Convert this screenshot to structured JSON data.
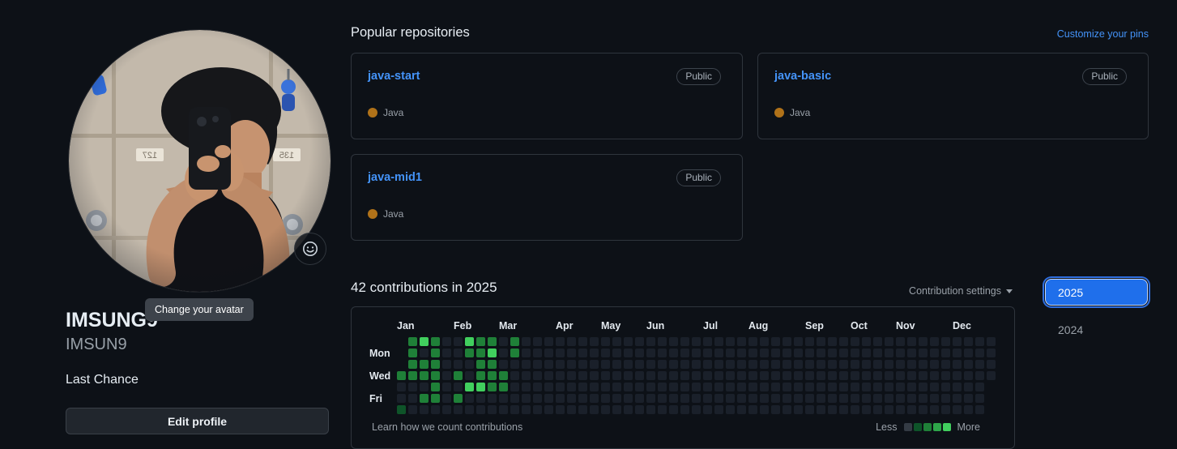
{
  "colors": {
    "link_blue": "#4493f8",
    "selected_year_bg": "#1f6feb",
    "java_dot": "#b07219"
  },
  "profile": {
    "name": "IMSUNG9",
    "username": "IMSUN9",
    "bio": "Last Chance",
    "edit_button_label": "Edit profile",
    "avatar_tooltip": "Change your avatar",
    "status_button_icon": "smiley-icon"
  },
  "pinned": {
    "heading": "Popular repositories",
    "customize_link": "Customize your pins",
    "repos": [
      {
        "name": "java-start",
        "visibility": "Public",
        "language": "Java"
      },
      {
        "name": "java-basic",
        "visibility": "Public",
        "language": "Java"
      },
      {
        "name": "java-mid1",
        "visibility": "Public",
        "language": "Java"
      }
    ]
  },
  "contributions": {
    "heading": "42 contributions in 2025",
    "settings_label": "Contribution settings",
    "years": [
      {
        "label": "2025",
        "selected": true
      },
      {
        "label": "2024",
        "selected": false
      }
    ],
    "footer_link": "Learn how we count contributions",
    "legend": {
      "less_label": "Less",
      "more_label": "More",
      "colors": [
        "#343b44",
        "#0e5429",
        "#1f8038",
        "#2ea64a",
        "#41cf5e"
      ]
    },
    "chart_data": {
      "type": "heatmap",
      "title": "42 contributions in 2025",
      "total_contributions": 42,
      "year": "2025",
      "weeks": 53,
      "first_week_start_day": 3,
      "last_week_end_day": 3,
      "day_labels": [
        {
          "label": "Mon",
          "row": 1
        },
        {
          "label": "Wed",
          "row": 3
        },
        {
          "label": "Fri",
          "row": 5
        }
      ],
      "months": [
        {
          "label": "Jan",
          "week": 0
        },
        {
          "label": "Feb",
          "week": 5
        },
        {
          "label": "Mar",
          "week": 9
        },
        {
          "label": "Apr",
          "week": 14
        },
        {
          "label": "May",
          "week": 18
        },
        {
          "label": "Jun",
          "week": 22
        },
        {
          "label": "Jul",
          "week": 27
        },
        {
          "label": "Aug",
          "week": 31
        },
        {
          "label": "Sep",
          "week": 36
        },
        {
          "label": "Oct",
          "week": 40
        },
        {
          "label": "Nov",
          "week": 44
        },
        {
          "label": "Dec",
          "week": 49
        }
      ],
      "level_colors": [
        "#1a202a",
        "#0e5429",
        "#1f8038",
        "#2ea64a",
        "#41cf5e"
      ],
      "cells": [
        {
          "w": 1,
          "d": 0,
          "l": 2
        },
        {
          "w": 2,
          "d": 0,
          "l": 4
        },
        {
          "w": 3,
          "d": 0,
          "l": 2
        },
        {
          "w": 6,
          "d": 0,
          "l": 4
        },
        {
          "w": 7,
          "d": 0,
          "l": 2
        },
        {
          "w": 8,
          "d": 0,
          "l": 2
        },
        {
          "w": 10,
          "d": 0,
          "l": 2
        },
        {
          "w": 1,
          "d": 1,
          "l": 2
        },
        {
          "w": 3,
          "d": 1,
          "l": 2
        },
        {
          "w": 6,
          "d": 1,
          "l": 2
        },
        {
          "w": 7,
          "d": 1,
          "l": 2
        },
        {
          "w": 8,
          "d": 1,
          "l": 4
        },
        {
          "w": 10,
          "d": 1,
          "l": 2
        },
        {
          "w": 1,
          "d": 2,
          "l": 2
        },
        {
          "w": 2,
          "d": 2,
          "l": 2
        },
        {
          "w": 3,
          "d": 2,
          "l": 2
        },
        {
          "w": 7,
          "d": 2,
          "l": 2
        },
        {
          "w": 8,
          "d": 2,
          "l": 2
        },
        {
          "w": 0,
          "d": 3,
          "l": 2
        },
        {
          "w": 1,
          "d": 3,
          "l": 2
        },
        {
          "w": 2,
          "d": 3,
          "l": 2
        },
        {
          "w": 3,
          "d": 3,
          "l": 2
        },
        {
          "w": 5,
          "d": 3,
          "l": 2
        },
        {
          "w": 7,
          "d": 3,
          "l": 2
        },
        {
          "w": 8,
          "d": 3,
          "l": 2
        },
        {
          "w": 9,
          "d": 3,
          "l": 2
        },
        {
          "w": 3,
          "d": 4,
          "l": 2
        },
        {
          "w": 6,
          "d": 4,
          "l": 4
        },
        {
          "w": 7,
          "d": 4,
          "l": 4
        },
        {
          "w": 8,
          "d": 4,
          "l": 2
        },
        {
          "w": 9,
          "d": 4,
          "l": 2
        },
        {
          "w": 2,
          "d": 5,
          "l": 2
        },
        {
          "w": 3,
          "d": 5,
          "l": 2
        },
        {
          "w": 5,
          "d": 5,
          "l": 2
        },
        {
          "w": 0,
          "d": 6,
          "l": 1
        }
      ]
    }
  }
}
